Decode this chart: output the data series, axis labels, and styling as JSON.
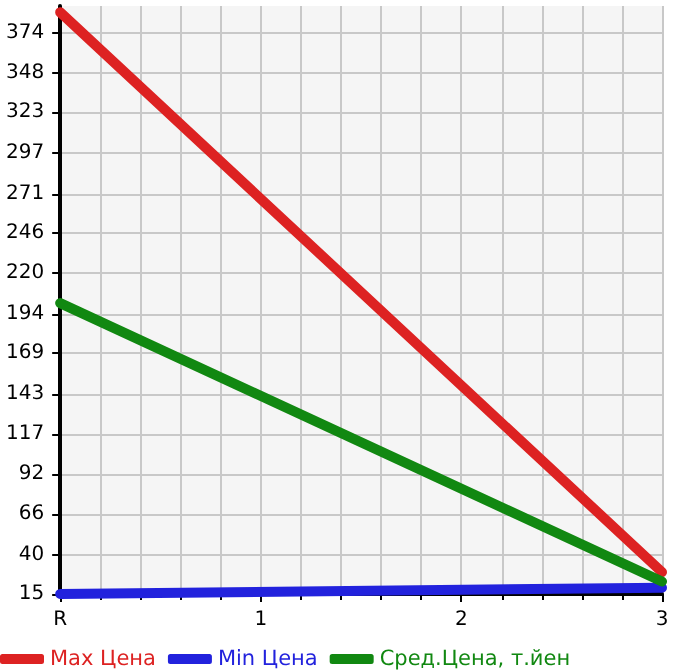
{
  "chart_data": {
    "type": "line",
    "categories": [
      "R",
      "1",
      "2",
      "3"
    ],
    "series": [
      {
        "name": "Max Цена",
        "color": "#dd2222",
        "values": [
          387,
          null,
          null,
          29
        ]
      },
      {
        "name": "Min Цена",
        "color": "#2222dd",
        "values": [
          15,
          null,
          null,
          19
        ]
      },
      {
        "name": "Сред.Цена, т.йен",
        "color": "#118811",
        "values": [
          201,
          null,
          null,
          23
        ]
      }
    ],
    "ylim": [
      15,
      391
    ],
    "yticks": [
      15,
      40,
      66,
      92,
      117,
      143,
      169,
      194,
      220,
      246,
      271,
      297,
      323,
      348,
      374
    ],
    "grid": true,
    "legend": "bottom",
    "marker": "none",
    "line_style": "solid"
  }
}
